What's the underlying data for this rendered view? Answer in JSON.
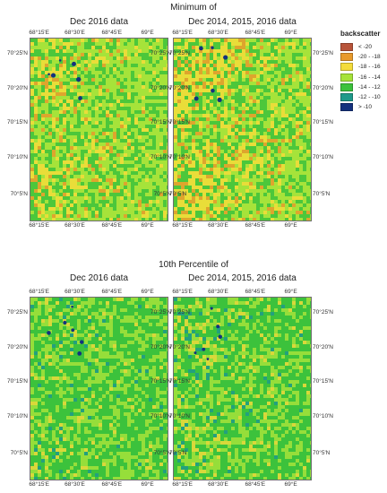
{
  "top": {
    "section_title": "Minimum of",
    "left_title": "Dec 2016 data",
    "right_title": "Dec 2014, 2015, 2016 data"
  },
  "bottom": {
    "section_title": "10th Percentile of",
    "left_title": "Dec 2016 data",
    "right_title": "Dec 2014, 2015, 2016 data"
  },
  "lon_ticks": [
    "68°15'E",
    "68°30'E",
    "68°45'E",
    "69°E"
  ],
  "lat_ticks": [
    "70°25'N",
    "70°20'N",
    "70°15'N",
    "70°10'N",
    "70°5'N"
  ],
  "legend": {
    "title": "backscatter",
    "items": [
      {
        "label": "< -20",
        "color": "#b8543a"
      },
      {
        "label": "-20 - -18",
        "color": "#e89a2c"
      },
      {
        "label": "-18 - -16",
        "color": "#f4dc3a"
      },
      {
        "label": "-16 - -14",
        "color": "#a6e33a"
      },
      {
        "label": "-14 - -12",
        "color": "#3cc23c"
      },
      {
        "label": "-12 - -10",
        "color": "#1f9a8a"
      },
      {
        "label": "> -10",
        "color": "#14327e"
      }
    ]
  },
  "maps": [
    {
      "id": "min-2016",
      "dominant": "#a6e33a",
      "mix": "#3cc23c",
      "warm": "#f4dc3a",
      "hot": "#e89a2c",
      "warm_level": 0.35
    },
    {
      "id": "min-3yr",
      "dominant": "#a6e33a",
      "mix": "#3cc23c",
      "warm": "#f4dc3a",
      "hot": "#e89a2c",
      "warm_level": 0.55
    },
    {
      "id": "p10-2016",
      "dominant": "#3cc23c",
      "mix": "#a6e33a",
      "warm": "#f4dc3a",
      "hot": "#1f9a8a",
      "warm_level": 0.15
    },
    {
      "id": "p10-3yr",
      "dominant": "#3cc23c",
      "mix": "#a6e33a",
      "warm": "#f4dc3a",
      "hot": "#1f9a8a",
      "warm_level": 0.2
    }
  ]
}
